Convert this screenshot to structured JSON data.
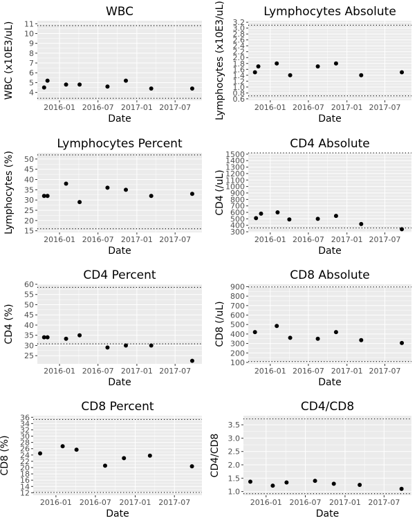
{
  "chart_data": [
    {
      "type": "scatter",
      "title": "WBC",
      "xlabel": "Date",
      "ylabel": "WBC (x10E3/uL)",
      "x_ticks": [
        "2016-01",
        "2016-07",
        "2017-01",
        "2017-07"
      ],
      "y_ticks": [
        "4",
        "5",
        "6",
        "7",
        "8",
        "9",
        "10",
        "11"
      ],
      "ylim": [
        3.2,
        11.3
      ],
      "reference_lines": [
        3.4,
        10.8
      ],
      "points": [
        {
          "date": "2015-10-20",
          "value": 4.5
        },
        {
          "date": "2015-11-05",
          "value": 5.2
        },
        {
          "date": "2016-02-01",
          "value": 4.8
        },
        {
          "date": "2016-04-05",
          "value": 4.8
        },
        {
          "date": "2016-08-15",
          "value": 4.6
        },
        {
          "date": "2016-11-10",
          "value": 5.2
        },
        {
          "date": "2017-03-10",
          "value": 4.4
        },
        {
          "date": "2017-09-20",
          "value": 4.4
        }
      ]
    },
    {
      "type": "scatter",
      "title": "Lymphocytes Absolute",
      "xlabel": "Date",
      "ylabel": "Lymphocytes (x10E3/uL)",
      "x_ticks": [
        "2016-01",
        "2016-07",
        "2017-01",
        "2017-07"
      ],
      "y_ticks": [
        "0.6",
        "0.8",
        "1.0",
        "1.2",
        "1.4",
        "1.6",
        "1.8",
        "2.0",
        "2.2",
        "2.4",
        "2.6",
        "2.8",
        "3.0",
        "3.2"
      ],
      "ylim": [
        0.55,
        3.25
      ],
      "reference_lines": [
        0.7,
        3.1
      ],
      "points": [
        {
          "date": "2015-10-20",
          "value": 1.5
        },
        {
          "date": "2015-11-05",
          "value": 1.7
        },
        {
          "date": "2016-02-01",
          "value": 1.8
        },
        {
          "date": "2016-04-05",
          "value": 1.4
        },
        {
          "date": "2016-08-15",
          "value": 1.7
        },
        {
          "date": "2016-11-10",
          "value": 1.8
        },
        {
          "date": "2017-03-10",
          "value": 1.4
        },
        {
          "date": "2017-09-20",
          "value": 1.5
        }
      ]
    },
    {
      "type": "scatter",
      "title": "Lymphocytes Percent",
      "xlabel": "Date",
      "ylabel": "Lymphocytes (%)",
      "x_ticks": [
        "2016-01",
        "2016-07",
        "2017-01",
        "2017-07"
      ],
      "y_ticks": [
        "15",
        "20",
        "25",
        "30",
        "35",
        "40",
        "45",
        "50"
      ],
      "ylim": [
        14.2,
        53
      ],
      "reference_lines": [
        16,
        52
      ],
      "points": [
        {
          "date": "2015-10-20",
          "value": 32
        },
        {
          "date": "2015-11-05",
          "value": 32
        },
        {
          "date": "2016-02-01",
          "value": 38
        },
        {
          "date": "2016-04-05",
          "value": 29
        },
        {
          "date": "2016-08-15",
          "value": 36
        },
        {
          "date": "2016-11-10",
          "value": 35
        },
        {
          "date": "2017-03-10",
          "value": 32
        },
        {
          "date": "2017-09-20",
          "value": 33
        }
      ]
    },
    {
      "type": "scatter",
      "title": "CD4 Absolute",
      "xlabel": "Date",
      "ylabel": "CD4 (/uL)",
      "x_ticks": [
        "2016-01",
        "2016-07",
        "2017-01",
        "2017-07"
      ],
      "y_ticks": [
        "300",
        "400",
        "500",
        "600",
        "700",
        "800",
        "900",
        "1000",
        "1100",
        "1200",
        "1300",
        "1400",
        "1500"
      ],
      "ylim": [
        290,
        1520
      ],
      "reference_lines": [
        359,
        1519
      ],
      "points": [
        {
          "date": "2015-10-25",
          "value": 510
        },
        {
          "date": "2015-11-18",
          "value": 580
        },
        {
          "date": "2016-02-05",
          "value": 600
        },
        {
          "date": "2016-04-01",
          "value": 490
        },
        {
          "date": "2016-08-15",
          "value": 500
        },
        {
          "date": "2016-11-10",
          "value": 545
        },
        {
          "date": "2017-03-10",
          "value": 420
        },
        {
          "date": "2017-09-20",
          "value": 340
        }
      ]
    },
    {
      "type": "scatter",
      "title": "CD4 Percent",
      "xlabel": "Date",
      "ylabel": "CD4 (%)",
      "x_ticks": [
        "2016-01",
        "2016-07",
        "2017-01",
        "2017-07"
      ],
      "y_ticks": [
        "25",
        "30",
        "35",
        "40",
        "45",
        "50",
        "55",
        "60"
      ],
      "ylim": [
        21,
        60
      ],
      "reference_lines": [
        30.8,
        58.5
      ],
      "points": [
        {
          "date": "2015-10-20",
          "value": 34
        },
        {
          "date": "2015-11-05",
          "value": 34
        },
        {
          "date": "2016-02-01",
          "value": 33.3
        },
        {
          "date": "2016-04-05",
          "value": 35
        },
        {
          "date": "2016-08-15",
          "value": 29
        },
        {
          "date": "2016-11-10",
          "value": 30
        },
        {
          "date": "2017-03-10",
          "value": 30
        },
        {
          "date": "2017-09-20",
          "value": 22.5
        }
      ]
    },
    {
      "type": "scatter",
      "title": "CD8 Absolute",
      "xlabel": "Date",
      "ylabel": "CD8 (/uL)",
      "x_ticks": [
        "2016-01",
        "2016-07",
        "2017-01",
        "2017-07"
      ],
      "y_ticks": [
        "100",
        "200",
        "300",
        "400",
        "500",
        "600",
        "700",
        "800",
        "900"
      ],
      "ylim": [
        85,
        925
      ],
      "reference_lines": [
        109,
        897
      ],
      "points": [
        {
          "date": "2015-10-20",
          "value": 420
        },
        {
          "date": "2016-02-01",
          "value": 485
        },
        {
          "date": "2016-04-05",
          "value": 360
        },
        {
          "date": "2016-08-15",
          "value": 350
        },
        {
          "date": "2016-11-10",
          "value": 420
        },
        {
          "date": "2017-03-10",
          "value": 335
        },
        {
          "date": "2017-09-20",
          "value": 305
        }
      ]
    },
    {
      "type": "scatter",
      "title": "CD8 Percent",
      "xlabel": "Date",
      "ylabel": "CD8 (%)",
      "x_ticks": [
        "2016-01",
        "2016-07",
        "2017-01",
        "2017-07"
      ],
      "y_ticks": [
        "12",
        "14",
        "16",
        "18",
        "20",
        "22",
        "24",
        "26",
        "28",
        "30",
        "32",
        "34",
        "36"
      ],
      "ylim": [
        11.2,
        36.5
      ],
      "reference_lines": [
        12.1,
        35.3
      ],
      "points": [
        {
          "date": "2015-10-20",
          "value": 24.5
        },
        {
          "date": "2016-02-01",
          "value": 26.8
        },
        {
          "date": "2016-04-05",
          "value": 25.7
        },
        {
          "date": "2016-08-15",
          "value": 20.6
        },
        {
          "date": "2016-11-10",
          "value": 23
        },
        {
          "date": "2017-03-10",
          "value": 23.8
        },
        {
          "date": "2017-09-20",
          "value": 20.4
        }
      ]
    },
    {
      "type": "scatter",
      "title": "CD4/CD8",
      "xlabel": "Date",
      "ylabel": "CD4/CD8",
      "x_ticks": [
        "2016-01",
        "2016-07",
        "2017-01",
        "2017-07"
      ],
      "y_ticks": [
        "1.0",
        "1.5",
        "2.0",
        "2.5",
        "3.0",
        "3.5"
      ],
      "ylim": [
        0.86,
        3.84
      ],
      "reference_lines": [
        0.92,
        3.72
      ],
      "points": [
        {
          "date": "2015-10-20",
          "value": 1.37
        },
        {
          "date": "2016-02-01",
          "value": 1.22
        },
        {
          "date": "2016-04-05",
          "value": 1.34
        },
        {
          "date": "2016-08-15",
          "value": 1.4
        },
        {
          "date": "2016-11-10",
          "value": 1.29
        },
        {
          "date": "2017-03-10",
          "value": 1.25
        },
        {
          "date": "2017-09-20",
          "value": 1.1
        }
      ]
    }
  ]
}
